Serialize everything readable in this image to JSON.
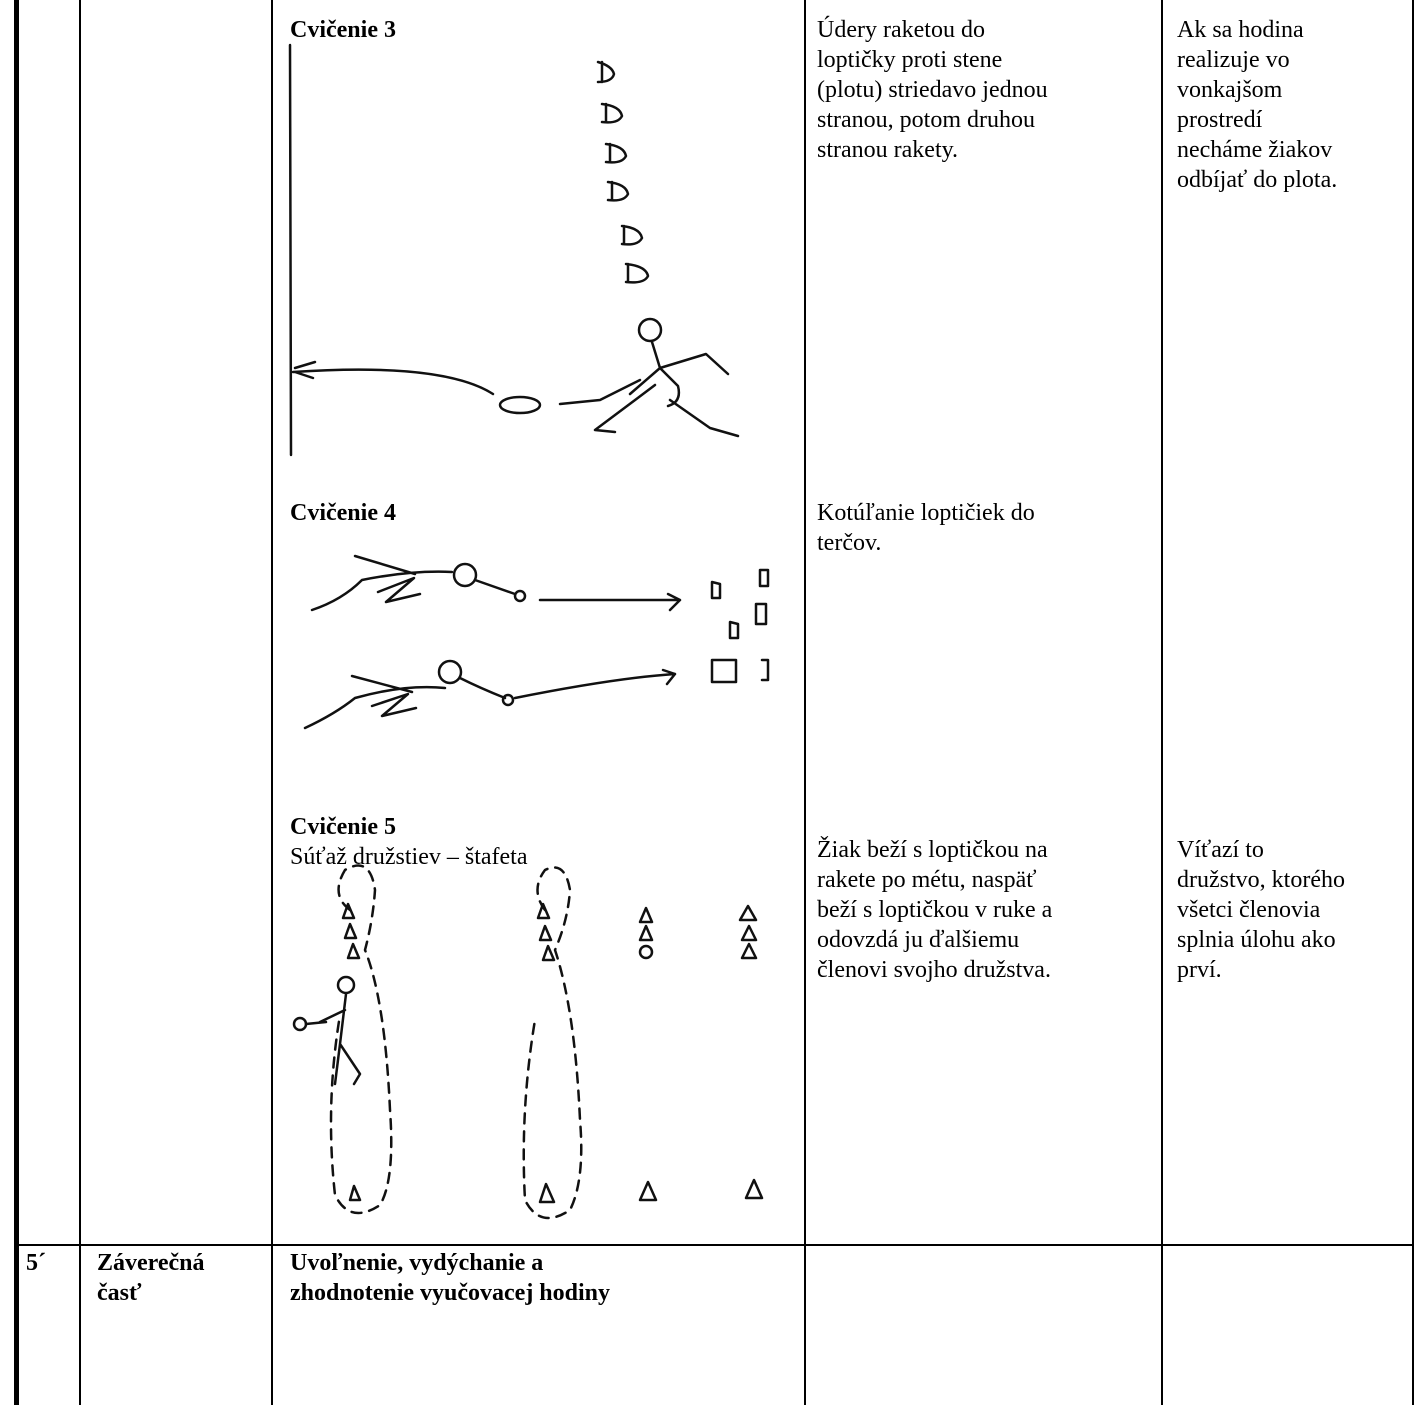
{
  "table": {
    "exercises": [
      {
        "title": "Cvičenie 3",
        "description": [
          "Údery raketou do",
          "loptičky proti stene",
          "(plotu) striedavo jednou",
          "stranou, potom druhou",
          "stranou rakety."
        ],
        "note": [
          "Ak sa hodina",
          "realizuje vo",
          "vonkajšom",
          "prostredí",
          "necháme žiakov",
          "odbíjať do plota."
        ]
      },
      {
        "title": "Cvičenie 4",
        "description": [
          "Kotúľanie loptičiek do",
          "terčov."
        ]
      },
      {
        "title": "Cvičenie 5",
        "subtitle": "Súťaž družstiev – štafeta",
        "description": [
          "Žiak beží s loptičkou na",
          "rakete po métu, naspäť",
          "beží s loptičkou v ruke a",
          "odovzdá ju ďalšiemu",
          "členovi svojho družstva."
        ],
        "note": [
          "Víťazí to",
          "družstvo, ktorého",
          "všetci členovia",
          "splnia úlohu ako",
          "prví."
        ]
      }
    ],
    "final": {
      "time": "5´",
      "part": [
        "Záverečná",
        "časť"
      ],
      "content": [
        "Uvoľnenie, vydýchanie a",
        "zhodnotenie vyučovacej hodiny"
      ]
    }
  }
}
